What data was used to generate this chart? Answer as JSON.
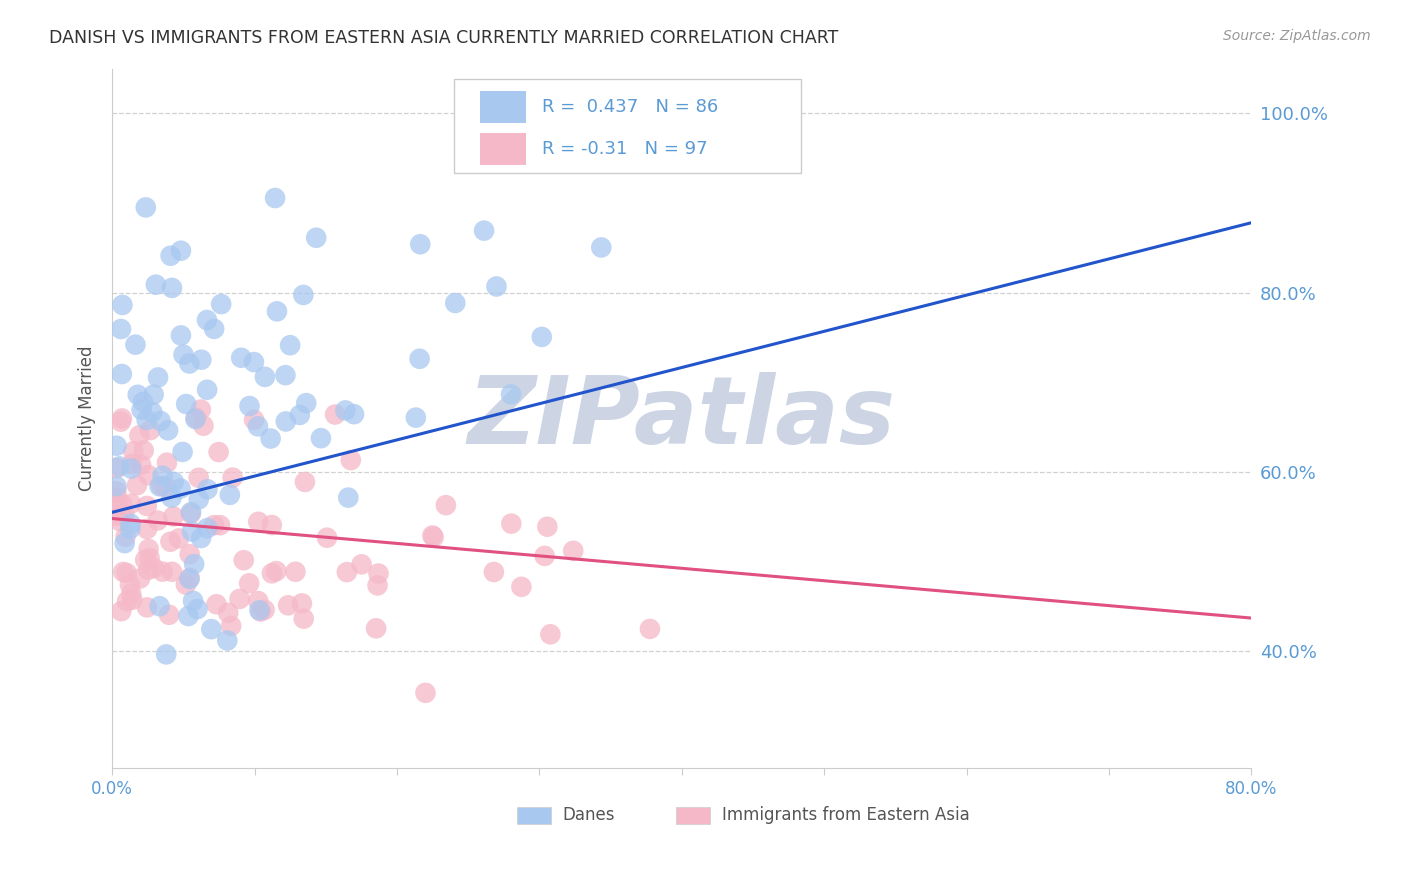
{
  "title": "DANISH VS IMMIGRANTS FROM EASTERN ASIA CURRENTLY MARRIED CORRELATION CHART",
  "source": "Source: ZipAtlas.com",
  "ylabel": "Currently Married",
  "legend_label_1": "Danes",
  "legend_label_2": "Immigrants from Eastern Asia",
  "r1": 0.437,
  "n1": 86,
  "r2": -0.31,
  "n2": 97,
  "xlim": [
    0.0,
    0.8
  ],
  "ylim": [
    0.27,
    1.05
  ],
  "yticks": [
    0.4,
    0.6,
    0.8,
    1.0
  ],
  "xticks": [
    0.0,
    0.1,
    0.2,
    0.3,
    0.4,
    0.5,
    0.6,
    0.7,
    0.8
  ],
  "color_blue": "#a8c8f0",
  "color_pink": "#f5b8c8",
  "trendline_blue": "#2255cc",
  "trendline_pink": "#e05080",
  "blue_trend_y0": 0.555,
  "blue_trend_y1": 0.878,
  "pink_trend_y0": 0.548,
  "pink_trend_y1": 0.437,
  "background": "#ffffff",
  "grid_color": "#cccccc",
  "watermark": "ZIPatlas",
  "watermark_color": "#cdd5e5",
  "axis_label_color": "#5b9bd5",
  "tick_color": "#5b9bd5",
  "title_color": "#333333",
  "source_color": "#999999",
  "text_color": "#555555",
  "legend_rn_color": "#5b9bd5"
}
